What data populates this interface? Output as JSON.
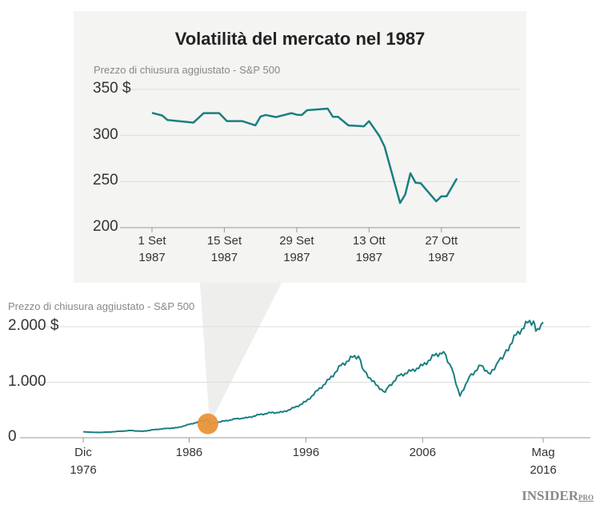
{
  "colors": {
    "line": "#1a7f80",
    "panel": "#f4f4f3",
    "highlight": "#e8943a",
    "grid": "#dddddd"
  },
  "chart_data": [
    {
      "type": "line",
      "title": "Volatilità del mercato nel 1987",
      "ylabel": "Prezzo di chiusura aggiustato - S&P 500",
      "ylim": [
        200,
        350
      ],
      "yticks": [
        "350 $",
        "300",
        "250",
        "200"
      ],
      "ytick_values": [
        350,
        300,
        250,
        200
      ],
      "xticks": [
        {
          "day": 0,
          "l1": "1 Set",
          "l2": "1987"
        },
        {
          "day": 14,
          "l1": "15 Set",
          "l2": "1987"
        },
        {
          "day": 28,
          "l1": "29 Set",
          "l2": "1987"
        },
        {
          "day": 42,
          "l1": "13 Ott",
          "l2": "1987"
        },
        {
          "day": 56,
          "l1": "27 Ott",
          "l2": "1987"
        }
      ],
      "x_unit": "days since 1 Sep 1987",
      "points": [
        [
          0,
          324.6
        ],
        [
          2,
          321.7
        ],
        [
          3,
          316.8
        ],
        [
          8,
          314
        ],
        [
          10,
          324.3
        ],
        [
          13,
          324.3
        ],
        [
          14.5,
          315.6
        ],
        [
          17.5,
          315.6
        ],
        [
          20,
          311
        ],
        [
          21,
          320.6
        ],
        [
          22,
          322.3
        ],
        [
          24,
          320
        ],
        [
          27,
          324.3
        ],
        [
          28,
          322.6
        ],
        [
          29,
          322.3
        ],
        [
          30,
          327.5
        ],
        [
          34,
          329.2
        ],
        [
          35,
          320.3
        ],
        [
          36,
          320.3
        ],
        [
          38,
          311
        ],
        [
          41,
          310
        ],
        [
          42,
          315.6
        ],
        [
          44,
          299.5
        ],
        [
          45,
          288
        ],
        [
          48,
          226.8
        ],
        [
          49,
          236
        ],
        [
          50,
          259
        ],
        [
          51,
          248.8
        ],
        [
          52,
          248.2
        ],
        [
          55,
          228.6
        ],
        [
          56,
          234
        ],
        [
          57,
          234
        ],
        [
          59,
          253.4
        ]
      ]
    },
    {
      "type": "line",
      "ylabel": "Prezzo di chiusura aggiustato - S&P 500",
      "ylim": [
        0,
        2000
      ],
      "yticks": [
        "2.000 $",
        "1.000",
        "0"
      ],
      "ytick_values": [
        2000,
        1000,
        0
      ],
      "xticks": [
        {
          "year": 1976.92,
          "l1": "Dic",
          "l2": "1976"
        },
        {
          "year": 1986,
          "l1": "1986",
          "l2": ""
        },
        {
          "year": 1996,
          "l1": "1996",
          "l2": ""
        },
        {
          "year": 2006,
          "l1": "2006",
          "l2": ""
        },
        {
          "year": 2016.33,
          "l1": "Mag",
          "l2": "2016"
        }
      ],
      "highlight": {
        "year": 1987.6,
        "value": 250
      },
      "points": [
        [
          1976.92,
          107
        ],
        [
          1978,
          95
        ],
        [
          1979,
          100
        ],
        [
          1980,
          115
        ],
        [
          1981,
          130
        ],
        [
          1982,
          115
        ],
        [
          1983,
          145
        ],
        [
          1984,
          165
        ],
        [
          1985,
          180
        ],
        [
          1986,
          240
        ],
        [
          1987.6,
          330
        ],
        [
          1987.8,
          235
        ],
        [
          1988,
          260
        ],
        [
          1989,
          300
        ],
        [
          1990,
          340
        ],
        [
          1991,
          360
        ],
        [
          1992,
          415
        ],
        [
          1993,
          450
        ],
        [
          1994,
          460
        ],
        [
          1995,
          540
        ],
        [
          1996,
          650
        ],
        [
          1997,
          850
        ],
        [
          1998,
          1050
        ],
        [
          1999,
          1300
        ],
        [
          2000,
          1450
        ],
        [
          2000.5,
          1470
        ],
        [
          2001,
          1200
        ],
        [
          2002,
          950
        ],
        [
          2002.8,
          820
        ],
        [
          2003,
          900
        ],
        [
          2004,
          1120
        ],
        [
          2005,
          1200
        ],
        [
          2006,
          1300
        ],
        [
          2007,
          1480
        ],
        [
          2007.8,
          1550
        ],
        [
          2008.5,
          1250
        ],
        [
          2009.2,
          750
        ],
        [
          2010,
          1100
        ],
        [
          2011,
          1300
        ],
        [
          2011.8,
          1150
        ],
        [
          2012.5,
          1380
        ],
        [
          2013,
          1500
        ],
        [
          2014,
          1850
        ],
        [
          2015,
          2070
        ],
        [
          2015.5,
          2100
        ],
        [
          2015.7,
          1920
        ],
        [
          2016,
          1950
        ],
        [
          2016.33,
          2080
        ]
      ]
    }
  ],
  "logo": {
    "main": "INSIDER",
    "sub": "PRO"
  }
}
